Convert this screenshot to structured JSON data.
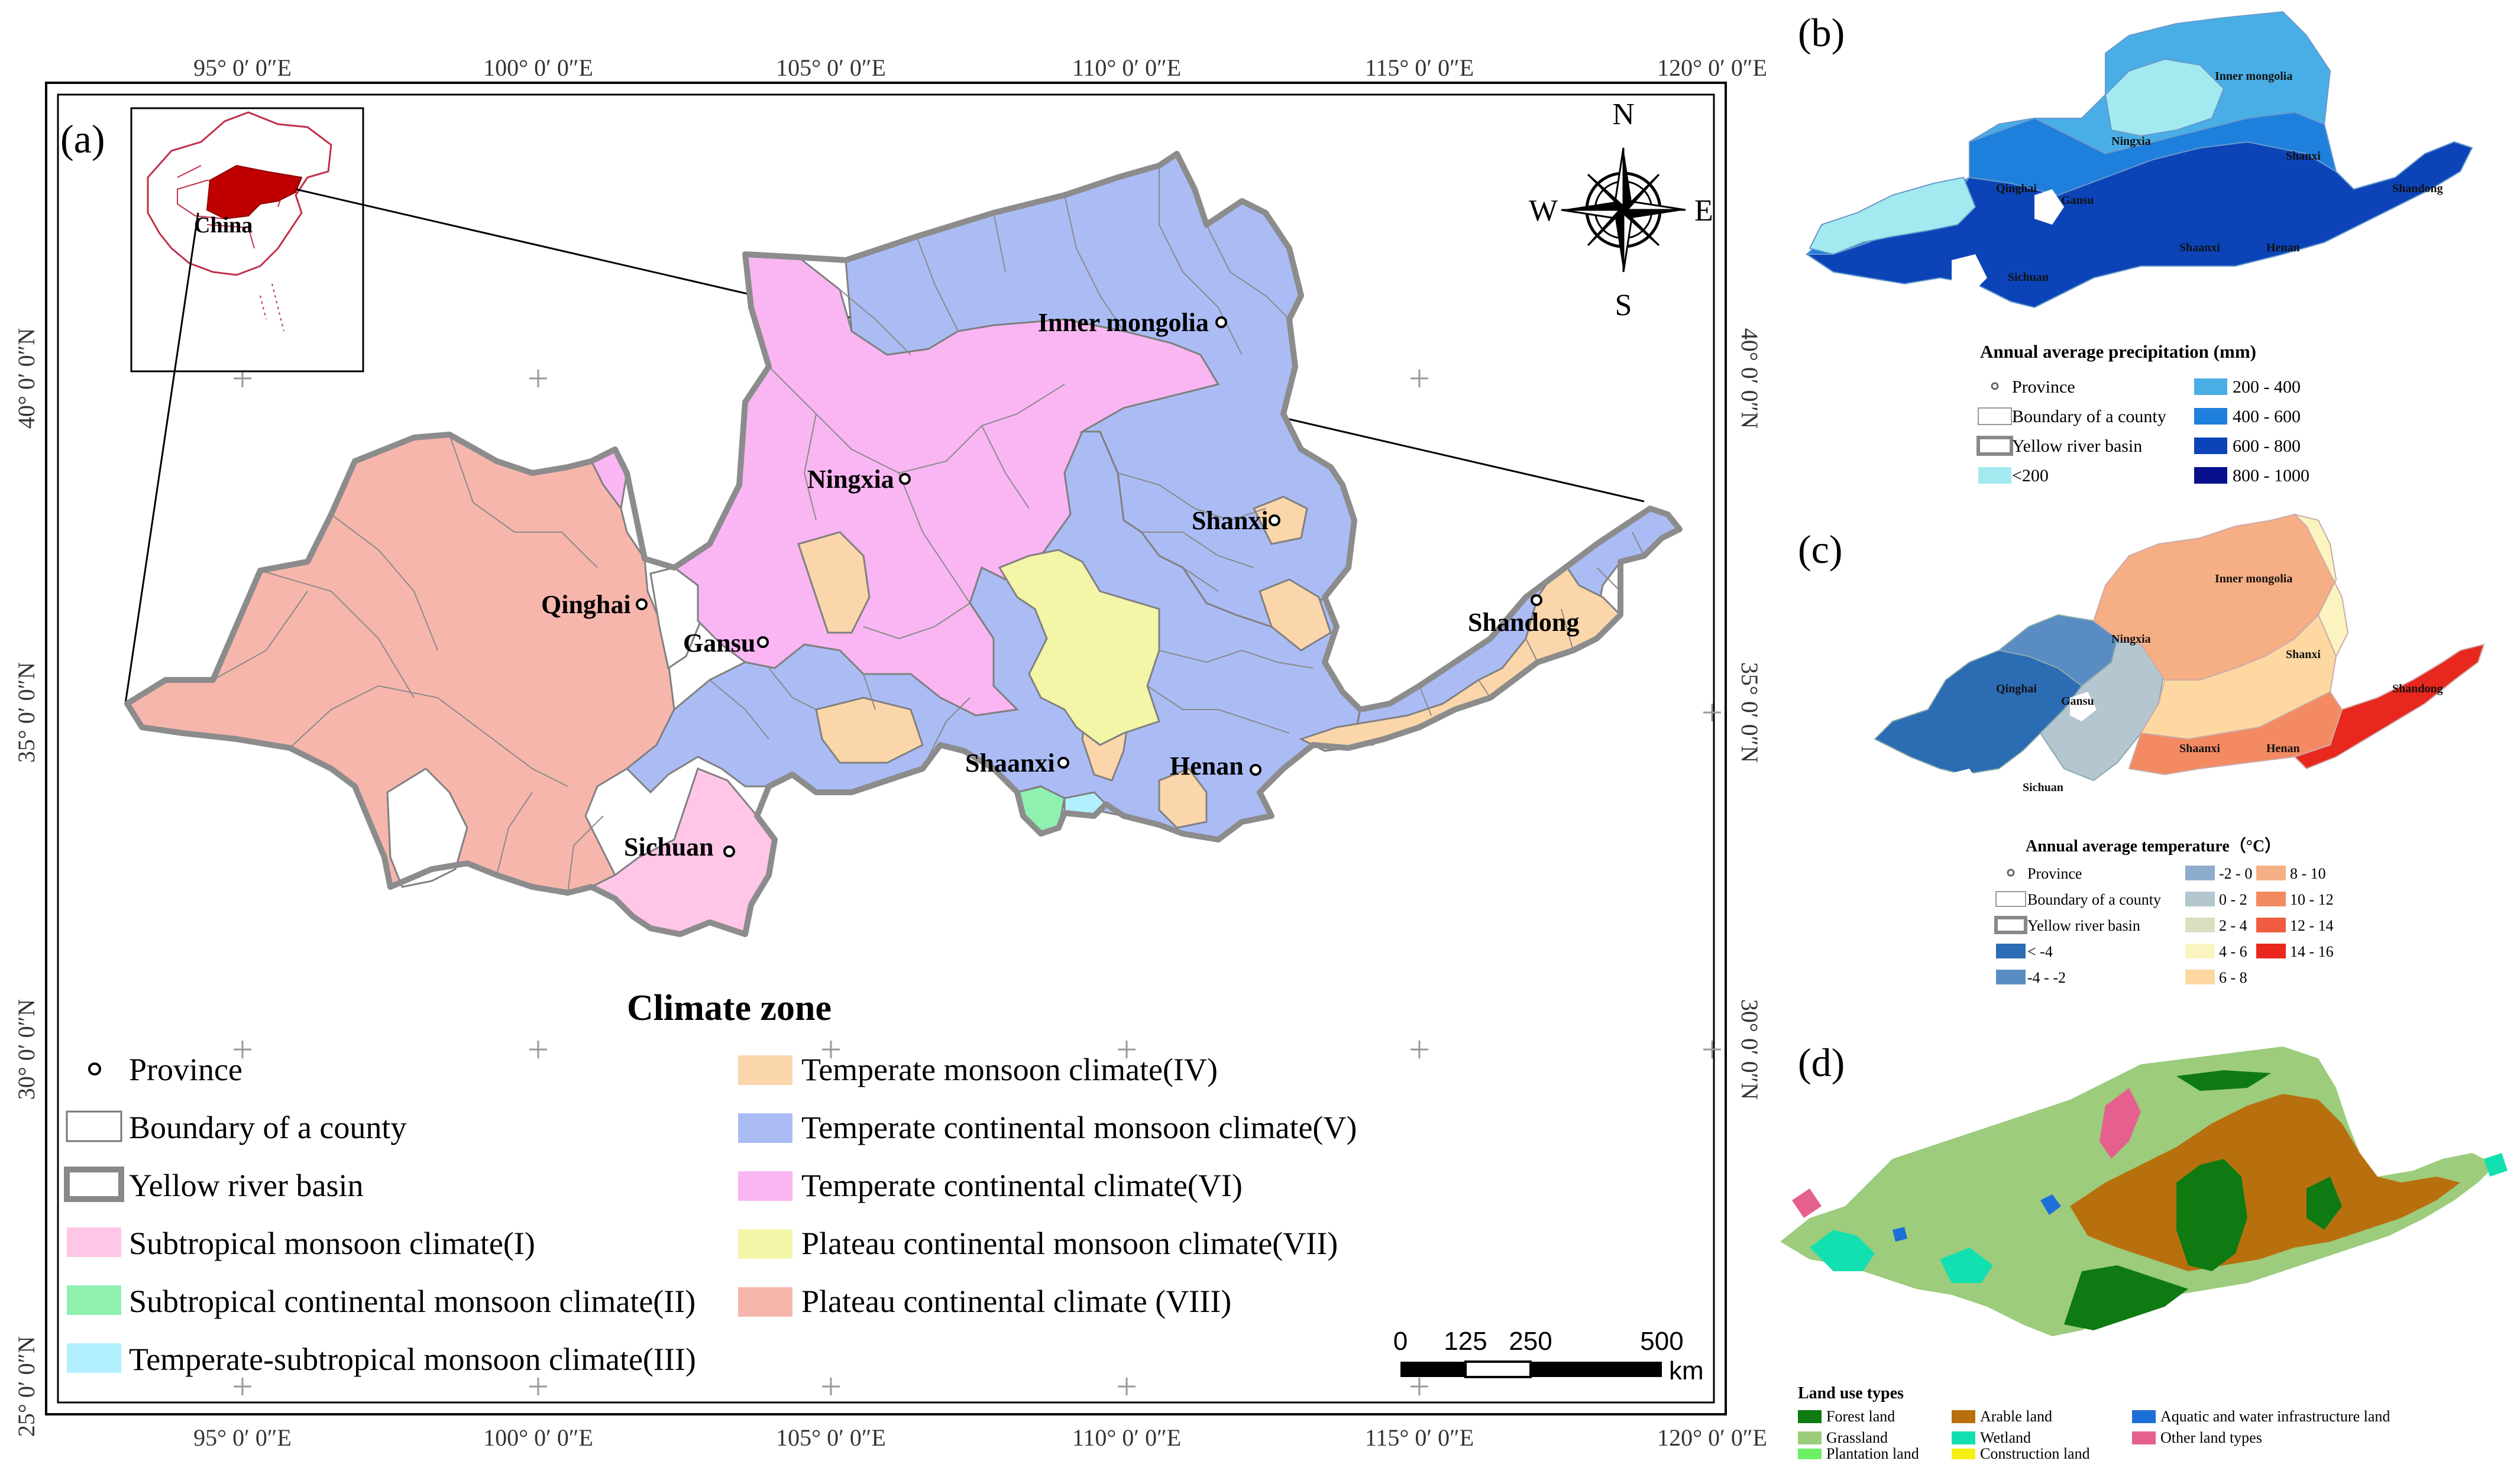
{
  "main_map": {
    "panel_label": "(a)",
    "coord_labels": {
      "lon_top": [
        "95° 0′ 0″E",
        "100° 0′ 0″E",
        "105° 0′ 0″E",
        "110° 0′ 0″E",
        "115° 0′ 0″E",
        "120° 0′ 0″E"
      ],
      "lon_bottom": [
        "95° 0′ 0″E",
        "100° 0′ 0″E",
        "105° 0′ 0″E",
        "110° 0′ 0″E",
        "115° 0′ 0″E",
        "120° 0′ 0″E"
      ],
      "lat_left": [
        "40° 0′ 0″N",
        "35° 0′ 0″N",
        "30° 0′ 0″N",
        "25° 0′ 0″N"
      ],
      "lat_right": [
        "40° 0′ 0″N",
        "35° 0′ 0″N",
        "30° 0′ 0″N"
      ]
    },
    "inset_label": "China",
    "compass": {
      "n": "N",
      "s": "S",
      "e": "E",
      "w": "W"
    },
    "provinces": [
      "Inner mongolia",
      "Ningxia",
      "Shanxi",
      "Qinghai",
      "Gansu",
      "Shandong",
      "Shaanxi",
      "Henan",
      "Sichuan"
    ],
    "legend": {
      "title": "Climate zone",
      "items_left": [
        {
          "label": "Province",
          "symbol": "point"
        },
        {
          "label": "Boundary of a county",
          "symbol": "box",
          "color": "#ffffff"
        },
        {
          "label": "Yellow river basin",
          "symbol": "basin"
        },
        {
          "label": "Subtropical monsoon climate(I)",
          "color": "#ffc6e8"
        },
        {
          "label": "Subtropical continental monsoon climate(II)",
          "color": "#8ff0b0"
        },
        {
          "label": "Temperate-subtropical monsoon climate(III)",
          "color": "#b2f0ff"
        }
      ],
      "items_right": [
        {
          "label": "Temperate monsoon climate(IV)",
          "color": "#fad6aa"
        },
        {
          "label": "Temperate continental monsoon climate(V)",
          "color": "#abbcf5"
        },
        {
          "label": "Temperate continental climate(VI)",
          "color": "#f9b6f3"
        },
        {
          "label": "Plateau continental monsoon climate(VII)",
          "color": "#f3f5a7"
        },
        {
          "label": "Plateau continental climate (VIII)",
          "color": "#f7b6ac"
        }
      ]
    },
    "scalebar": {
      "ticks": [
        "0",
        "125",
        "250",
        "500"
      ],
      "unit": "km"
    }
  },
  "panel_b": {
    "label": "(b)",
    "legend_title": "Annual average precipitation (mm)",
    "legend_left": [
      {
        "label": "Province",
        "symbol": "point"
      },
      {
        "label": "Boundary of a county",
        "color": "#ffffff"
      },
      {
        "label": "Yellow river basin",
        "symbol": "basin"
      },
      {
        "label": "<200",
        "color": "#a3eaf0"
      }
    ],
    "legend_right": [
      {
        "label": "200 - 400",
        "color": "#4aaee6"
      },
      {
        "label": "400 - 600",
        "color": "#1f7fdc"
      },
      {
        "label": "600 - 800",
        "color": "#0c44b8"
      },
      {
        "label": "800 - 1000",
        "color": "#06108c"
      }
    ],
    "provinces": [
      "Inner mongolia",
      "Ningxia",
      "Shanxi",
      "Qinghai",
      "Gansu",
      "Shandong",
      "Shaanxi",
      "Henan",
      "Sichuan"
    ]
  },
  "panel_c": {
    "label": "(c)",
    "legend_title": "Annual average temperature（°C）",
    "legend_col1": [
      {
        "label": "Province",
        "symbol": "point"
      },
      {
        "label": "Boundary of a county",
        "color": "#ffffff"
      },
      {
        "label": "Yellow river basin",
        "symbol": "basin"
      },
      {
        "label": "< -4",
        "color": "#2b6cb3"
      },
      {
        "label": "-4 - -2",
        "color": "#5a8cc4"
      }
    ],
    "legend_col2": [
      {
        "label": "-2 - 0",
        "color": "#8eaccb"
      },
      {
        "label": "0 - 2",
        "color": "#b4c6cf"
      },
      {
        "label": "2 - 4",
        "color": "#d8e0c0"
      },
      {
        "label": "4 - 6",
        "color": "#fbf4c0"
      },
      {
        "label": "6 - 8",
        "color": "#fdd8a0"
      }
    ],
    "legend_col3": [
      {
        "label": "8 - 10",
        "color": "#f6ae84"
      },
      {
        "label": "10 - 12",
        "color": "#f38a62"
      },
      {
        "label": "12 - 14",
        "color": "#ef5c40"
      },
      {
        "label": "14 - 16",
        "color": "#e8281e"
      }
    ],
    "provinces": [
      "Inner mongolia",
      "Ningxia",
      "Shanxi",
      "Qinghai",
      "Gansu",
      "Shandong",
      "Shaanxi",
      "Henan",
      "Sichuan"
    ]
  },
  "panel_d": {
    "label": "(d)",
    "legend_title": "Land use types",
    "legend_col1": [
      {
        "label": "Forest land",
        "color": "#0f7a12"
      },
      {
        "label": "Grassland",
        "color": "#9ccc7c"
      },
      {
        "label": "Plantation land",
        "color": "#6cf063"
      }
    ],
    "legend_col2": [
      {
        "label": "Arable land",
        "color": "#b8700e"
      },
      {
        "label": "Wetland",
        "color": "#12e0b0"
      },
      {
        "label": "Construction land",
        "color": "#f6f012"
      }
    ],
    "legend_col3": [
      {
        "label": "Aquatic and water infrastructure land",
        "color": "#1e6ed8"
      },
      {
        "label": "Other land types",
        "color": "#e6608e"
      }
    ]
  }
}
